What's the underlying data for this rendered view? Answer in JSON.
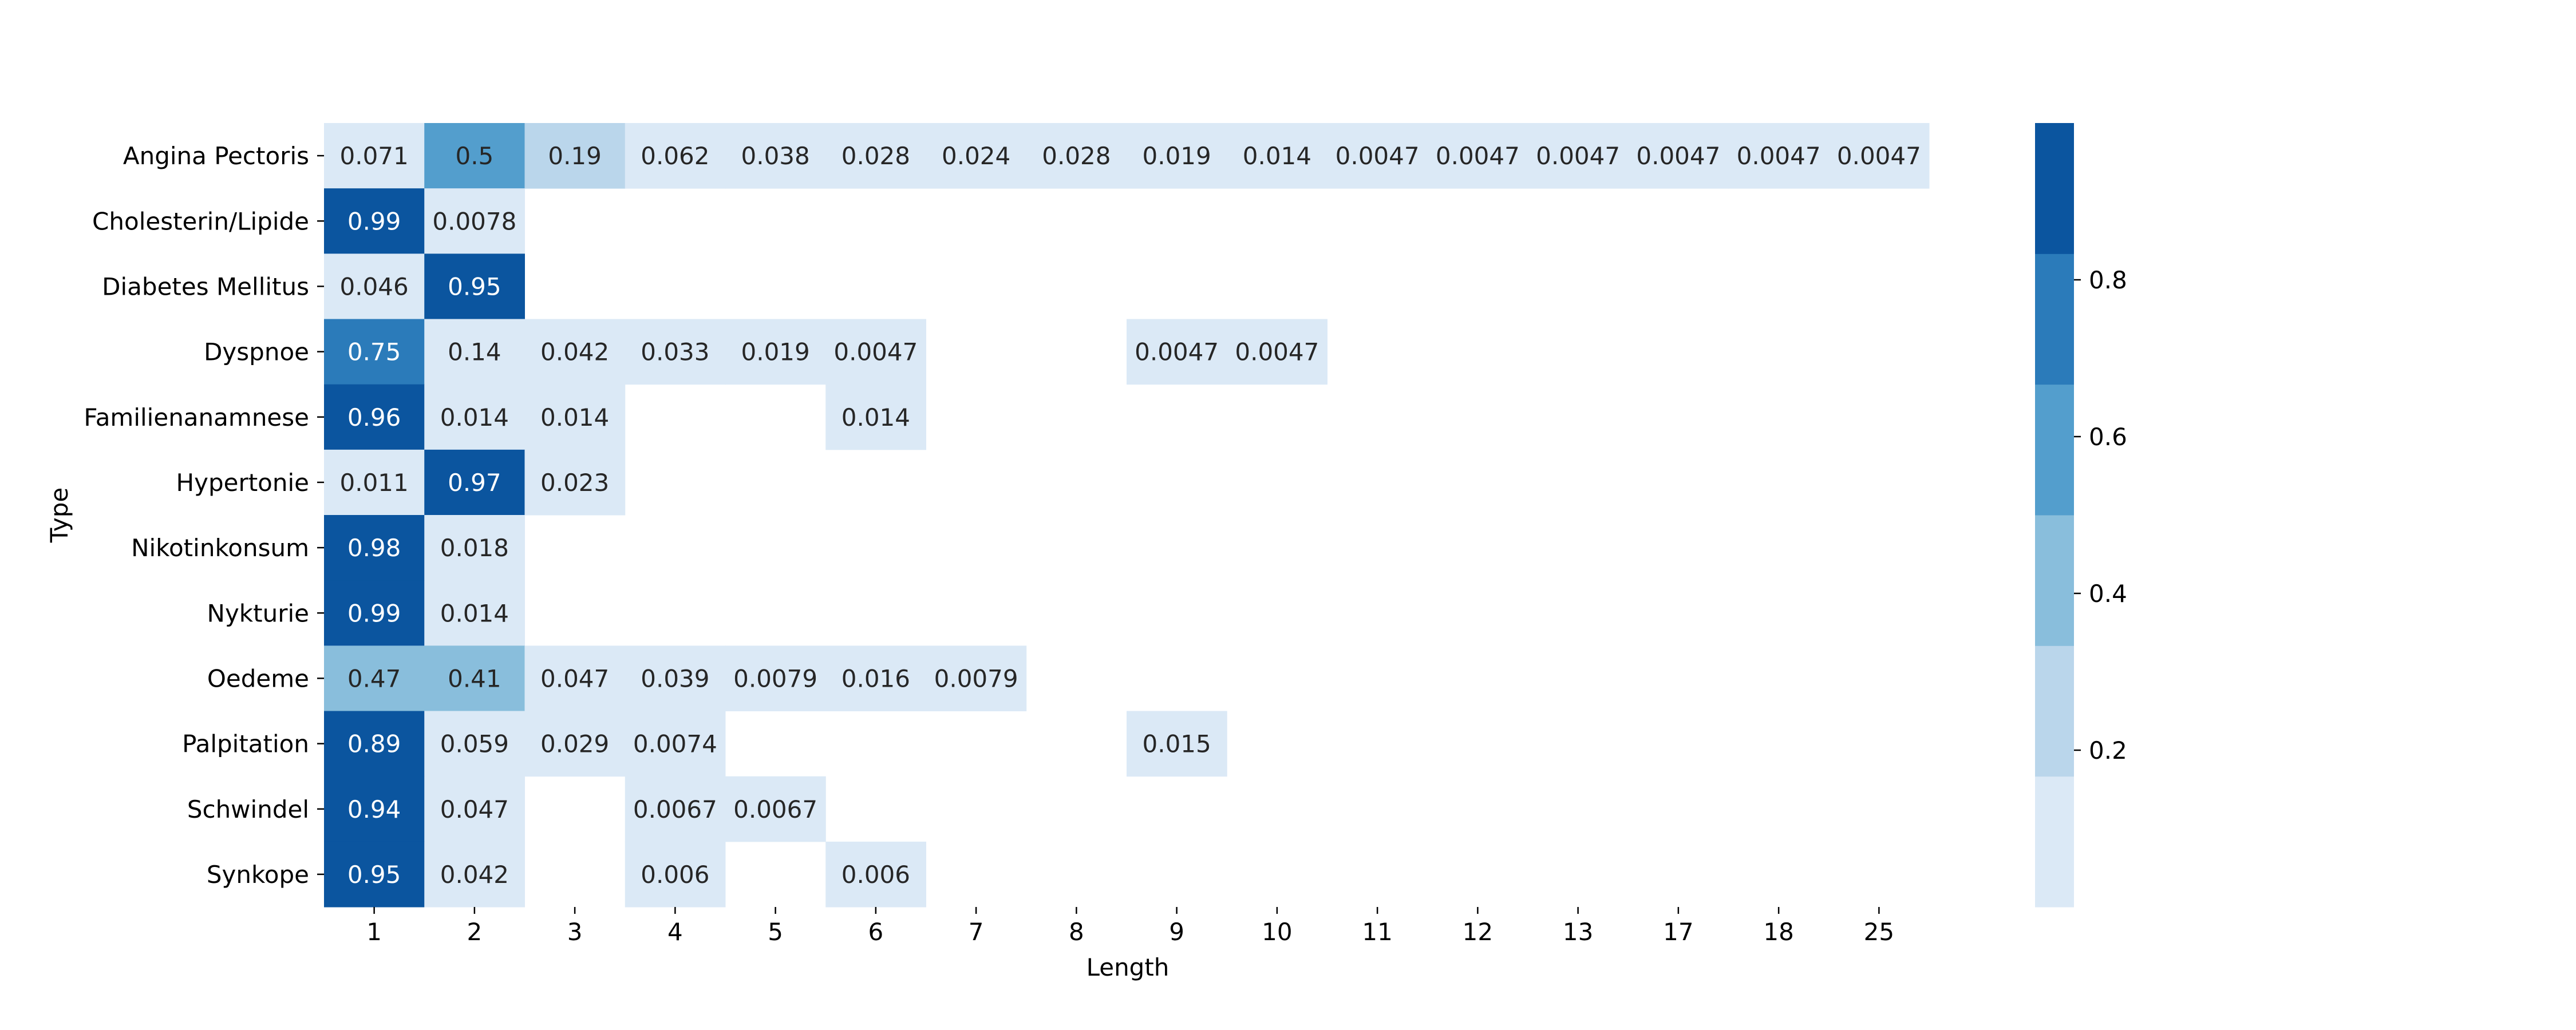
{
  "chart_data": {
    "type": "heatmap",
    "xlabel": "Length",
    "ylabel": "Type",
    "x": [
      "1",
      "2",
      "3",
      "4",
      "5",
      "6",
      "7",
      "8",
      "9",
      "10",
      "11",
      "12",
      "13",
      "17",
      "18",
      "25"
    ],
    "y": [
      "Angina Pectoris",
      "Cholesterin/Lipide",
      "Diabetes Mellitus",
      "Dyspnoe",
      "Familienanamnese",
      "Hypertonie",
      "Nikotinkonsum",
      "Nykturie",
      "Oedeme",
      "Palpitation",
      "Schwindel",
      "Synkope"
    ],
    "cells": [
      {
        "row": 0,
        "col": 0,
        "value": 0.071,
        "label": "0.071"
      },
      {
        "row": 0,
        "col": 1,
        "value": 0.5,
        "label": "0.5"
      },
      {
        "row": 0,
        "col": 2,
        "value": 0.19,
        "label": "0.19"
      },
      {
        "row": 0,
        "col": 3,
        "value": 0.062,
        "label": "0.062"
      },
      {
        "row": 0,
        "col": 4,
        "value": 0.038,
        "label": "0.038"
      },
      {
        "row": 0,
        "col": 5,
        "value": 0.028,
        "label": "0.028"
      },
      {
        "row": 0,
        "col": 6,
        "value": 0.024,
        "label": "0.024"
      },
      {
        "row": 0,
        "col": 7,
        "value": 0.028,
        "label": "0.028"
      },
      {
        "row": 0,
        "col": 8,
        "value": 0.019,
        "label": "0.019"
      },
      {
        "row": 0,
        "col": 9,
        "value": 0.014,
        "label": "0.014"
      },
      {
        "row": 0,
        "col": 10,
        "value": 0.0047,
        "label": "0.0047"
      },
      {
        "row": 0,
        "col": 11,
        "value": 0.0047,
        "label": "0.0047"
      },
      {
        "row": 0,
        "col": 12,
        "value": 0.0047,
        "label": "0.0047"
      },
      {
        "row": 0,
        "col": 13,
        "value": 0.0047,
        "label": "0.0047"
      },
      {
        "row": 0,
        "col": 14,
        "value": 0.0047,
        "label": "0.0047"
      },
      {
        "row": 0,
        "col": 15,
        "value": 0.0047,
        "label": "0.0047"
      },
      {
        "row": 1,
        "col": 0,
        "value": 0.99,
        "label": "0.99"
      },
      {
        "row": 1,
        "col": 1,
        "value": 0.0078,
        "label": "0.0078"
      },
      {
        "row": 2,
        "col": 0,
        "value": 0.046,
        "label": "0.046"
      },
      {
        "row": 2,
        "col": 1,
        "value": 0.95,
        "label": "0.95"
      },
      {
        "row": 3,
        "col": 0,
        "value": 0.75,
        "label": "0.75"
      },
      {
        "row": 3,
        "col": 1,
        "value": 0.14,
        "label": "0.14"
      },
      {
        "row": 3,
        "col": 2,
        "value": 0.042,
        "label": "0.042"
      },
      {
        "row": 3,
        "col": 3,
        "value": 0.033,
        "label": "0.033"
      },
      {
        "row": 3,
        "col": 4,
        "value": 0.019,
        "label": "0.019"
      },
      {
        "row": 3,
        "col": 5,
        "value": 0.0047,
        "label": "0.0047"
      },
      {
        "row": 3,
        "col": 8,
        "value": 0.0047,
        "label": "0.0047"
      },
      {
        "row": 3,
        "col": 9,
        "value": 0.0047,
        "label": "0.0047"
      },
      {
        "row": 4,
        "col": 0,
        "value": 0.96,
        "label": "0.96"
      },
      {
        "row": 4,
        "col": 1,
        "value": 0.014,
        "label": "0.014"
      },
      {
        "row": 4,
        "col": 2,
        "value": 0.014,
        "label": "0.014"
      },
      {
        "row": 4,
        "col": 5,
        "value": 0.014,
        "label": "0.014"
      },
      {
        "row": 5,
        "col": 0,
        "value": 0.011,
        "label": "0.011"
      },
      {
        "row": 5,
        "col": 1,
        "value": 0.97,
        "label": "0.97"
      },
      {
        "row": 5,
        "col": 2,
        "value": 0.023,
        "label": "0.023"
      },
      {
        "row": 6,
        "col": 0,
        "value": 0.98,
        "label": "0.98"
      },
      {
        "row": 6,
        "col": 1,
        "value": 0.018,
        "label": "0.018"
      },
      {
        "row": 7,
        "col": 0,
        "value": 0.99,
        "label": "0.99"
      },
      {
        "row": 7,
        "col": 1,
        "value": 0.014,
        "label": "0.014"
      },
      {
        "row": 8,
        "col": 0,
        "value": 0.47,
        "label": "0.47"
      },
      {
        "row": 8,
        "col": 1,
        "value": 0.41,
        "label": "0.41"
      },
      {
        "row": 8,
        "col": 2,
        "value": 0.047,
        "label": "0.047"
      },
      {
        "row": 8,
        "col": 3,
        "value": 0.039,
        "label": "0.039"
      },
      {
        "row": 8,
        "col": 4,
        "value": 0.0079,
        "label": "0.0079"
      },
      {
        "row": 8,
        "col": 5,
        "value": 0.016,
        "label": "0.016"
      },
      {
        "row": 8,
        "col": 6,
        "value": 0.0079,
        "label": "0.0079"
      },
      {
        "row": 9,
        "col": 0,
        "value": 0.89,
        "label": "0.89"
      },
      {
        "row": 9,
        "col": 1,
        "value": 0.059,
        "label": "0.059"
      },
      {
        "row": 9,
        "col": 2,
        "value": 0.029,
        "label": "0.029"
      },
      {
        "row": 9,
        "col": 3,
        "value": 0.0074,
        "label": "0.0074"
      },
      {
        "row": 9,
        "col": 8,
        "value": 0.015,
        "label": "0.015"
      },
      {
        "row": 10,
        "col": 0,
        "value": 0.94,
        "label": "0.94"
      },
      {
        "row": 10,
        "col": 1,
        "value": 0.047,
        "label": "0.047"
      },
      {
        "row": 10,
        "col": 3,
        "value": 0.0067,
        "label": "0.0067"
      },
      {
        "row": 10,
        "col": 4,
        "value": 0.0067,
        "label": "0.0067"
      },
      {
        "row": 11,
        "col": 0,
        "value": 0.95,
        "label": "0.95"
      },
      {
        "row": 11,
        "col": 1,
        "value": 0.042,
        "label": "0.042"
      },
      {
        "row": 11,
        "col": 3,
        "value": 0.006,
        "label": "0.006"
      },
      {
        "row": 11,
        "col": 5,
        "value": 0.006,
        "label": "0.006"
      }
    ],
    "colorbar": {
      "range": [
        0,
        1
      ],
      "ticks": [
        0.2,
        0.4,
        0.6,
        0.8
      ],
      "tick_labels": [
        "0.2",
        "0.4",
        "0.6",
        "0.8"
      ],
      "colors": [
        "#dbe9f6",
        "#bad6eb",
        "#89bedc",
        "#539ecd",
        "#2b7bba",
        "#0b559f"
      ]
    },
    "text_colors": {
      "dark": "#262626",
      "light": "#ffffff"
    },
    "grid": false
  }
}
